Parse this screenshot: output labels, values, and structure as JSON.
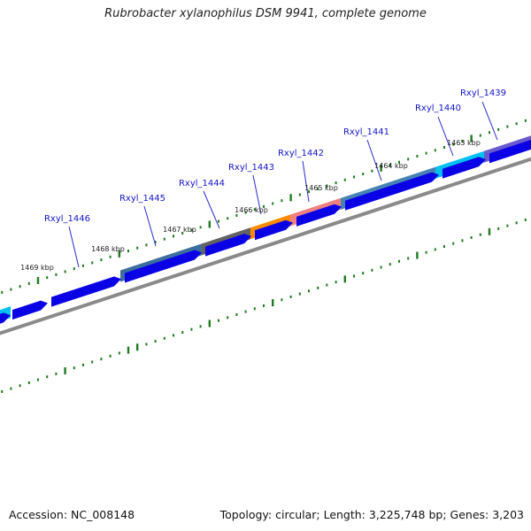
{
  "header": {
    "title": "Rubrobacter xylanophilus DSM 9941, complete genome"
  },
  "footer": {
    "accession": "Accession: NC_008148",
    "summary": "Topology: circular; Length: 3,225,748 bp; Genes: 3,203"
  },
  "colors": {
    "gene_arrow": "#0a00e6",
    "backbone": "#8a8a8a",
    "ticks": "#1f7a1f",
    "label": "#1414c8",
    "leader_line": "#2a2ad0"
  },
  "gene_labels": [
    "Rxyl_1439",
    "Rxyl_1440",
    "Rxyl_1441",
    "Rxyl_1442",
    "Rxyl_1443",
    "Rxyl_1444",
    "Rxyl_1445",
    "Rxyl_1446"
  ],
  "kbp_labels": [
    "1463 kbp",
    "1464 kbp",
    "1465 kbp",
    "1466 kbp",
    "1467 kbp",
    "1468 kbp",
    "1469 kbp"
  ],
  "feature_track_colors": [
    "#3c6e9e",
    "#00c0f0",
    "#6a5acd",
    "#626262",
    "#ff8c00",
    "#f08080",
    "#4682b4"
  ]
}
